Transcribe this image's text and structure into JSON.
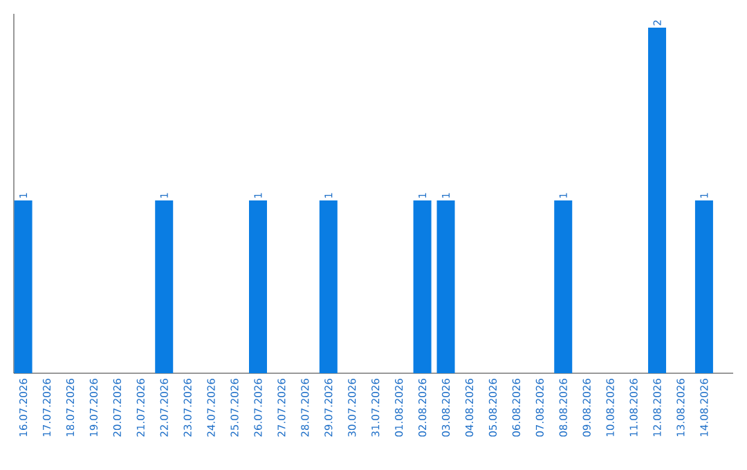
{
  "chart_data": {
    "type": "bar",
    "categories": [
      "16.07.2026",
      "17.07.2026",
      "18.07.2026",
      "19.07.2026",
      "20.07.2026",
      "21.07.2026",
      "22.07.2026",
      "23.07.2026",
      "24.07.2026",
      "25.07.2026",
      "26.07.2026",
      "27.07.2026",
      "28.07.2026",
      "29.07.2026",
      "30.07.2026",
      "31.07.2026",
      "01.08.2026",
      "02.08.2026",
      "03.08.2026",
      "04.08.2026",
      "05.08.2026",
      "06.08.2026",
      "07.08.2026",
      "08.08.2026",
      "09.08.2026",
      "10.08.2026",
      "11.08.2026",
      "12.08.2026",
      "13.08.2026",
      "14.08.2026"
    ],
    "values": [
      1,
      0,
      0,
      0,
      0,
      0,
      1,
      0,
      0,
      0,
      1,
      0,
      0,
      1,
      0,
      0,
      0,
      1,
      1,
      0,
      0,
      0,
      0,
      1,
      0,
      0,
      0,
      2,
      0,
      1
    ],
    "value_labels": [
      "1",
      null,
      null,
      null,
      null,
      null,
      "1",
      null,
      null,
      null,
      "1",
      null,
      null,
      "1",
      null,
      null,
      null,
      "1",
      "1",
      null,
      null,
      null,
      null,
      "1",
      null,
      null,
      null,
      "2",
      null,
      "1"
    ],
    "color": "#0a7de3",
    "ylim": [
      0,
      2.08
    ],
    "tick_labels": "x"
  }
}
